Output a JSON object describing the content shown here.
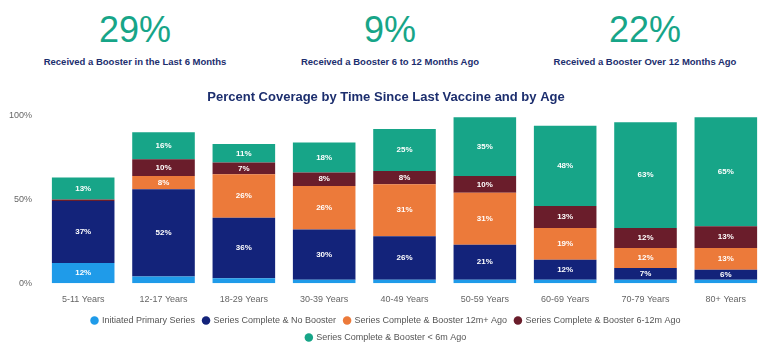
{
  "highlights": [
    {
      "value": "29%",
      "label": "Received a Booster in the Last 6 Months"
    },
    {
      "value": "9%",
      "label": "Received a Booster 6 to 12 Months Ago"
    },
    {
      "value": "22%",
      "label": "Received a Booster Over 12 Months Ago"
    }
  ],
  "chart_data": {
    "type": "bar",
    "title": "Percent Coverage by Time Since Last Vaccine and by Age",
    "categories": [
      "5-11 Years",
      "12-17 Years",
      "18-29 Years",
      "30-39 Years",
      "40-49 Years",
      "50-59 Years",
      "60-69 Years",
      "70-79 Years",
      "80+ Years"
    ],
    "series": [
      {
        "name": "Initiated Primary Series",
        "color": "#1f9be9",
        "values": [
          12,
          4,
          3,
          2,
          2,
          2,
          2,
          2,
          2
        ],
        "value_labels": [
          "12%",
          null,
          null,
          null,
          null,
          null,
          null,
          null,
          null
        ]
      },
      {
        "name": "Series Complete & No Booster",
        "color": "#13237a",
        "values": [
          37,
          52,
          36,
          30,
          26,
          21,
          12,
          7,
          6
        ],
        "value_labels": [
          "37%",
          "52%",
          "36%",
          "30%",
          "26%",
          "21%",
          "12%",
          "7%",
          "6%"
        ]
      },
      {
        "name": "Series Complete & Booster 12m+ Ago",
        "color": "#ec7a3a",
        "values": [
          0,
          8,
          26,
          26,
          31,
          31,
          19,
          12,
          13
        ],
        "value_labels": [
          null,
          "8%",
          "26%",
          "26%",
          "31%",
          "31%",
          "19%",
          "12%",
          "13%"
        ]
      },
      {
        "name": "Series Complete & Booster 6-12m Ago",
        "color": "#6a1d2b",
        "values": [
          1,
          10,
          7,
          8,
          8,
          10,
          13,
          12,
          13
        ],
        "value_labels": [
          null,
          "10%",
          "7%",
          "8%",
          "8%",
          "10%",
          "13%",
          "12%",
          "13%"
        ]
      },
      {
        "name": "Series Complete & Booster < 6m Ago",
        "color": "#17a588",
        "values": [
          13,
          16,
          11,
          18,
          25,
          35,
          48,
          63,
          65
        ],
        "value_labels": [
          "13%",
          "16%",
          "11%",
          "18%",
          "25%",
          "35%",
          "48%",
          "63%",
          "65%"
        ]
      }
    ],
    "stacked": true,
    "data_labels": true,
    "ylim": [
      0,
      100
    ],
    "yticks": [
      {
        "value": 0,
        "label": "0%"
      },
      {
        "value": 50,
        "label": "50%"
      },
      {
        "value": 100,
        "label": "100%"
      }
    ],
    "grid": false,
    "legend": "bottom"
  }
}
